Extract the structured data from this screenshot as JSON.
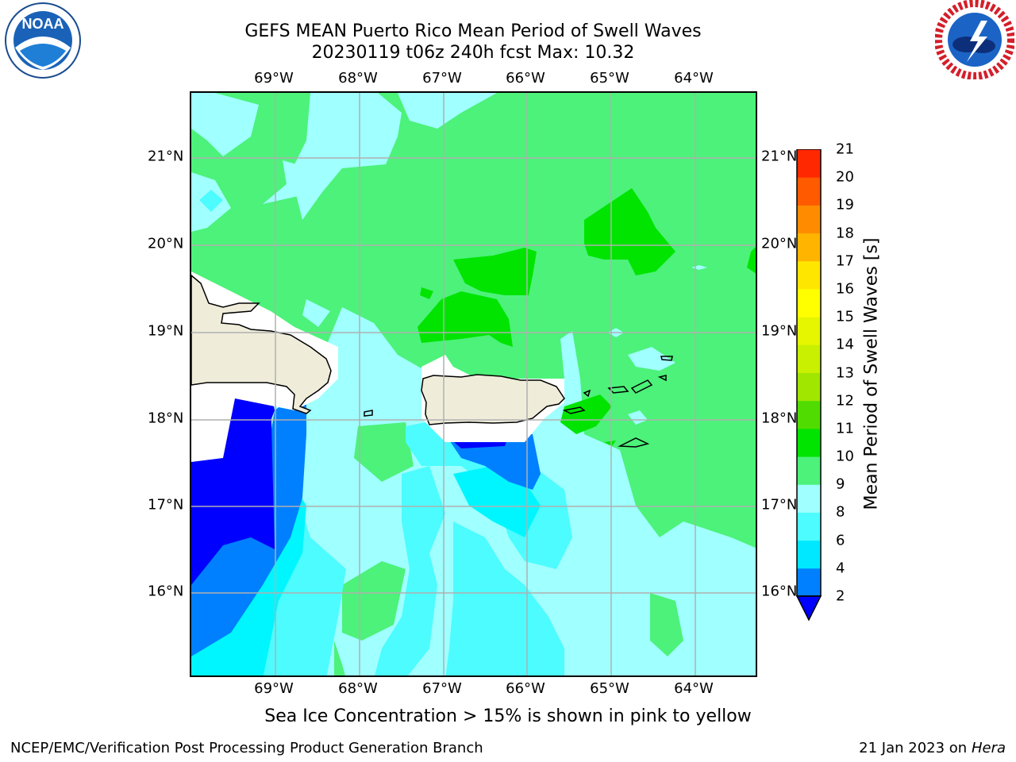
{
  "header": {
    "title_line1": "GEFS MEAN Puerto Rico Mean Period of Swell Waves",
    "title_line2": "20230119 t06z 240h fcst   Max: 10.32"
  },
  "logos": {
    "left": {
      "name": "NOAA",
      "text": "NOAA",
      "ring_text": "NATIONAL OCEANIC AND ATMOSPHERIC ADMINISTRATION · U.S. DEPARTMENT OF COMMERCE"
    },
    "right": {
      "name": "National Weather Service",
      "ring_text": "NATIONAL WEATHER SERVICE"
    }
  },
  "map": {
    "lon_ticks": [
      "69°W",
      "68°W",
      "67°W",
      "66°W",
      "65°W",
      "64°W"
    ],
    "lat_ticks": [
      "21°N",
      "20°N",
      "19°N",
      "18°N",
      "17°N",
      "16°N"
    ],
    "land_color": "#efedda",
    "gridlines": true
  },
  "colorbar": {
    "label": "Mean Period of Swell Waves [s]",
    "ticks": [
      "2",
      "4",
      "6",
      "8",
      "9",
      "10",
      "11",
      "12",
      "13",
      "14",
      "15",
      "16",
      "17",
      "18",
      "19",
      "20",
      "21"
    ],
    "colors": [
      "#0080ff",
      "#00e8ff",
      "#4cfcff",
      "#a0ffff",
      "#4cf27a",
      "#00e400",
      "#50dc00",
      "#a0e600",
      "#c8f000",
      "#e6f500",
      "#ffff00",
      "#ffe600",
      "#ffb400",
      "#ff8c00",
      "#ff5a00",
      "#ff2800",
      "#ff0000"
    ],
    "under_color": "#0000ff"
  },
  "subtitle": "Sea Ice Concentration > 15% is shown in pink to yellow",
  "footer": {
    "left": "NCEP/EMC/Verification Post Processing Product Generation Branch",
    "right_prefix": "21 Jan 2023 on",
    "right_host": "Hera"
  }
}
